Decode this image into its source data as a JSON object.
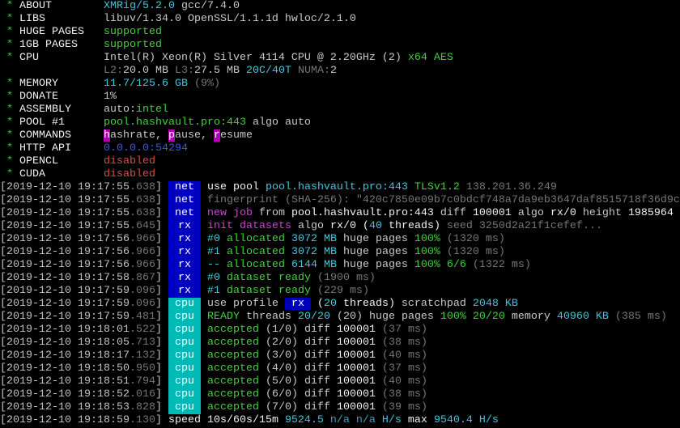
{
  "colors": {
    "net": "#0000c0",
    "rx": "#0000c0",
    "cpu": "#00b8b8",
    "cyan": "#3cc8d8",
    "green": "#3cd33c",
    "magenta": "#d040d0",
    "red": "#e04848",
    "blue": "#3b5bdb"
  },
  "header": [
    {
      "label": "ABOUT",
      "seg": [
        [
          "XMRig/5.2.0",
          "c"
        ],
        [
          " gcc/7.4.0",
          "w"
        ]
      ]
    },
    {
      "label": "LIBS",
      "seg": [
        [
          "libuv/1.34.0 OpenSSL/1.1.1d hwloc/2.1.0",
          "w"
        ]
      ]
    },
    {
      "label": "HUGE PAGES",
      "seg": [
        [
          "supported",
          "g"
        ]
      ]
    },
    {
      "label": "1GB PAGES",
      "seg": [
        [
          "supported",
          "g"
        ]
      ]
    },
    {
      "label": "CPU",
      "seg": [
        [
          "Intel(R) Xeon(R) Silver 4114 CPU @ 2.20GHz (2)",
          "w"
        ],
        [
          " x64 AES",
          "g"
        ]
      ]
    },
    {
      "label": "",
      "seg": [
        [
          "L2:",
          "d"
        ],
        [
          "20.0 MB",
          "w"
        ],
        [
          " L3:",
          "d"
        ],
        [
          "27.5 MB",
          "w"
        ],
        [
          " 20C/40T",
          "c"
        ],
        [
          " NUMA:",
          "d"
        ],
        [
          "2",
          "w"
        ]
      ]
    },
    {
      "label": "MEMORY",
      "seg": [
        [
          "11.7/125.6 GB",
          "c"
        ],
        [
          " (9%)",
          "d"
        ]
      ]
    },
    {
      "label": "DONATE",
      "seg": [
        [
          "1%",
          "w"
        ]
      ]
    },
    {
      "label": "ASSEMBLY",
      "seg": [
        [
          "auto:",
          "w"
        ],
        [
          "intel",
          "g"
        ]
      ]
    },
    {
      "label": "POOL #1",
      "seg": [
        [
          "pool.hashvault.pro:443",
          "g"
        ],
        [
          " algo auto",
          "w"
        ]
      ]
    },
    {
      "label": "COMMANDS",
      "seg": [
        [
          "h",
          "hl"
        ],
        [
          "ashrate, ",
          "w"
        ],
        [
          "p",
          "hl"
        ],
        [
          "ause, ",
          "w"
        ],
        [
          "r",
          "hl"
        ],
        [
          "esume",
          "w"
        ]
      ]
    },
    {
      "label": "HTTP API",
      "seg": [
        [
          "0.0.0.0:54294",
          "b"
        ]
      ]
    },
    {
      "label": "OPENCL",
      "seg": [
        [
          "disabled",
          "r"
        ]
      ]
    },
    {
      "label": "CUDA",
      "seg": [
        [
          "disabled",
          "r"
        ]
      ]
    }
  ],
  "log": [
    {
      "ts": "2019-12-10 19:17:55",
      "ms": ".638",
      "tag": "net",
      "seg": [
        [
          "use pool ",
          "W"
        ],
        [
          "pool.hashvault.pro:443",
          "c"
        ],
        [
          " TLSv1.2",
          "g"
        ],
        [
          " 138.201.36.249",
          "d"
        ]
      ]
    },
    {
      "ts": "2019-12-10 19:17:55",
      "ms": ".638",
      "tag": "net",
      "seg": [
        [
          "fingerprint (SHA-256): \"420c7850e09b7c0bdcf748a7da9eb3647daf8515718f36d9c",
          "d"
        ]
      ]
    },
    {
      "ts": "2019-12-10 19:17:55",
      "ms": ".638",
      "tag": "net",
      "seg": [
        [
          "new job",
          "m"
        ],
        [
          " from ",
          "w"
        ],
        [
          "pool.hashvault.pro:443",
          "W"
        ],
        [
          " diff ",
          "w"
        ],
        [
          "100001",
          "W"
        ],
        [
          " algo ",
          "w"
        ],
        [
          "rx/0",
          "W"
        ],
        [
          " height ",
          "w"
        ],
        [
          "1985964",
          "W"
        ]
      ]
    },
    {
      "ts": "2019-12-10 19:17:55",
      "ms": ".645",
      "tag": "rx",
      "seg": [
        [
          "init datasets",
          "m"
        ],
        [
          " algo ",
          "w"
        ],
        [
          "rx/0",
          "W"
        ],
        [
          " (",
          "W"
        ],
        [
          "40",
          "c"
        ],
        [
          " threads)",
          "W"
        ],
        [
          " seed 3250d2a21f1cefef...",
          "d"
        ]
      ]
    },
    {
      "ts": "2019-12-10 19:17:56",
      "ms": ".966",
      "tag": "rx",
      "seg": [
        [
          "#0",
          "c"
        ],
        [
          " allocated ",
          "g"
        ],
        [
          "3072 MB",
          "c"
        ],
        [
          " huge pages ",
          "w"
        ],
        [
          "100%",
          "g"
        ],
        [
          " (1320 ms)",
          "d"
        ]
      ]
    },
    {
      "ts": "2019-12-10 19:17:56",
      "ms": ".966",
      "tag": "rx",
      "seg": [
        [
          "#1",
          "c"
        ],
        [
          " allocated ",
          "g"
        ],
        [
          "3072 MB",
          "c"
        ],
        [
          " huge pages ",
          "w"
        ],
        [
          "100%",
          "g"
        ],
        [
          " (1320 ms)",
          "d"
        ]
      ]
    },
    {
      "ts": "2019-12-10 19:17:56",
      "ms": ".966",
      "tag": "rx",
      "seg": [
        [
          "--",
          "c"
        ],
        [
          " allocated ",
          "g"
        ],
        [
          "6144 MB",
          "c"
        ],
        [
          " huge pages ",
          "w"
        ],
        [
          "100% 6/6",
          "g"
        ],
        [
          " (1322 ms)",
          "d"
        ]
      ]
    },
    {
      "ts": "2019-12-10 19:17:58",
      "ms": ".867",
      "tag": "rx",
      "seg": [
        [
          "#0",
          "c"
        ],
        [
          " dataset ready",
          "g"
        ],
        [
          " (1900 ms)",
          "d"
        ]
      ]
    },
    {
      "ts": "2019-12-10 19:17:59",
      "ms": ".096",
      "tag": "rx",
      "seg": [
        [
          "#1",
          "c"
        ],
        [
          " dataset ready",
          "g"
        ],
        [
          " (229 ms)",
          "d"
        ]
      ]
    },
    {
      "ts": "2019-12-10 19:17:59",
      "ms": ".096",
      "tag": "cpu",
      "seg": [
        [
          "use profile ",
          "w"
        ],
        [
          " rx ",
          "rxbox"
        ],
        [
          " (",
          "W"
        ],
        [
          "20",
          "c"
        ],
        [
          " threads)",
          "W"
        ],
        [
          " scratchpad ",
          "w"
        ],
        [
          "2048 KB",
          "c"
        ]
      ]
    },
    {
      "ts": "2019-12-10 19:17:59",
      "ms": ".481",
      "tag": "cpu",
      "seg": [
        [
          "READY",
          "g"
        ],
        [
          " threads ",
          "w"
        ],
        [
          "20/20",
          "c"
        ],
        [
          " (20)",
          "w"
        ],
        [
          " huge pages ",
          "w"
        ],
        [
          "100% 20/20",
          "g"
        ],
        [
          " memory ",
          "w"
        ],
        [
          "40960 KB",
          "c"
        ],
        [
          " (385 ms)",
          "d"
        ]
      ]
    },
    {
      "ts": "2019-12-10 19:18:01",
      "ms": ".522",
      "tag": "cpu",
      "seg": [
        [
          "accepted",
          "g"
        ],
        [
          " (1/0) diff ",
          "w"
        ],
        [
          "100001",
          "W"
        ],
        [
          " (37 ms)",
          "d"
        ]
      ]
    },
    {
      "ts": "2019-12-10 19:18:05",
      "ms": ".713",
      "tag": "cpu",
      "seg": [
        [
          "accepted",
          "g"
        ],
        [
          " (2/0) diff ",
          "w"
        ],
        [
          "100001",
          "W"
        ],
        [
          " (38 ms)",
          "d"
        ]
      ]
    },
    {
      "ts": "2019-12-10 19:18:17",
      "ms": ".132",
      "tag": "cpu",
      "seg": [
        [
          "accepted",
          "g"
        ],
        [
          " (3/0) diff ",
          "w"
        ],
        [
          "100001",
          "W"
        ],
        [
          " (40 ms)",
          "d"
        ]
      ]
    },
    {
      "ts": "2019-12-10 19:18:50",
      "ms": ".950",
      "tag": "cpu",
      "seg": [
        [
          "accepted",
          "g"
        ],
        [
          " (4/0) diff ",
          "w"
        ],
        [
          "100001",
          "W"
        ],
        [
          " (37 ms)",
          "d"
        ]
      ]
    },
    {
      "ts": "2019-12-10 19:18:51",
      "ms": ".794",
      "tag": "cpu",
      "seg": [
        [
          "accepted",
          "g"
        ],
        [
          " (5/0) diff ",
          "w"
        ],
        [
          "100001",
          "W"
        ],
        [
          " (40 ms)",
          "d"
        ]
      ]
    },
    {
      "ts": "2019-12-10 19:18:52",
      "ms": ".016",
      "tag": "cpu",
      "seg": [
        [
          "accepted",
          "g"
        ],
        [
          " (6/0) diff ",
          "w"
        ],
        [
          "100001",
          "W"
        ],
        [
          " (38 ms)",
          "d"
        ]
      ]
    },
    {
      "ts": "2019-12-10 19:18:53",
      "ms": ".828",
      "tag": "cpu",
      "seg": [
        [
          "accepted",
          "g"
        ],
        [
          " (7/0) diff ",
          "w"
        ],
        [
          "100001",
          "W"
        ],
        [
          " (39 ms)",
          "d"
        ]
      ]
    },
    {
      "ts": "2019-12-10 19:18:59",
      "ms": ".130",
      "tag": "",
      "seg": [
        [
          " speed 10s/60s/15m ",
          "W"
        ],
        [
          "9524.5",
          "c"
        ],
        [
          " n/a n/a",
          "t"
        ],
        [
          " H/s",
          "c"
        ],
        [
          " max ",
          "W"
        ],
        [
          "9540.4 H/s",
          "c"
        ]
      ]
    }
  ]
}
